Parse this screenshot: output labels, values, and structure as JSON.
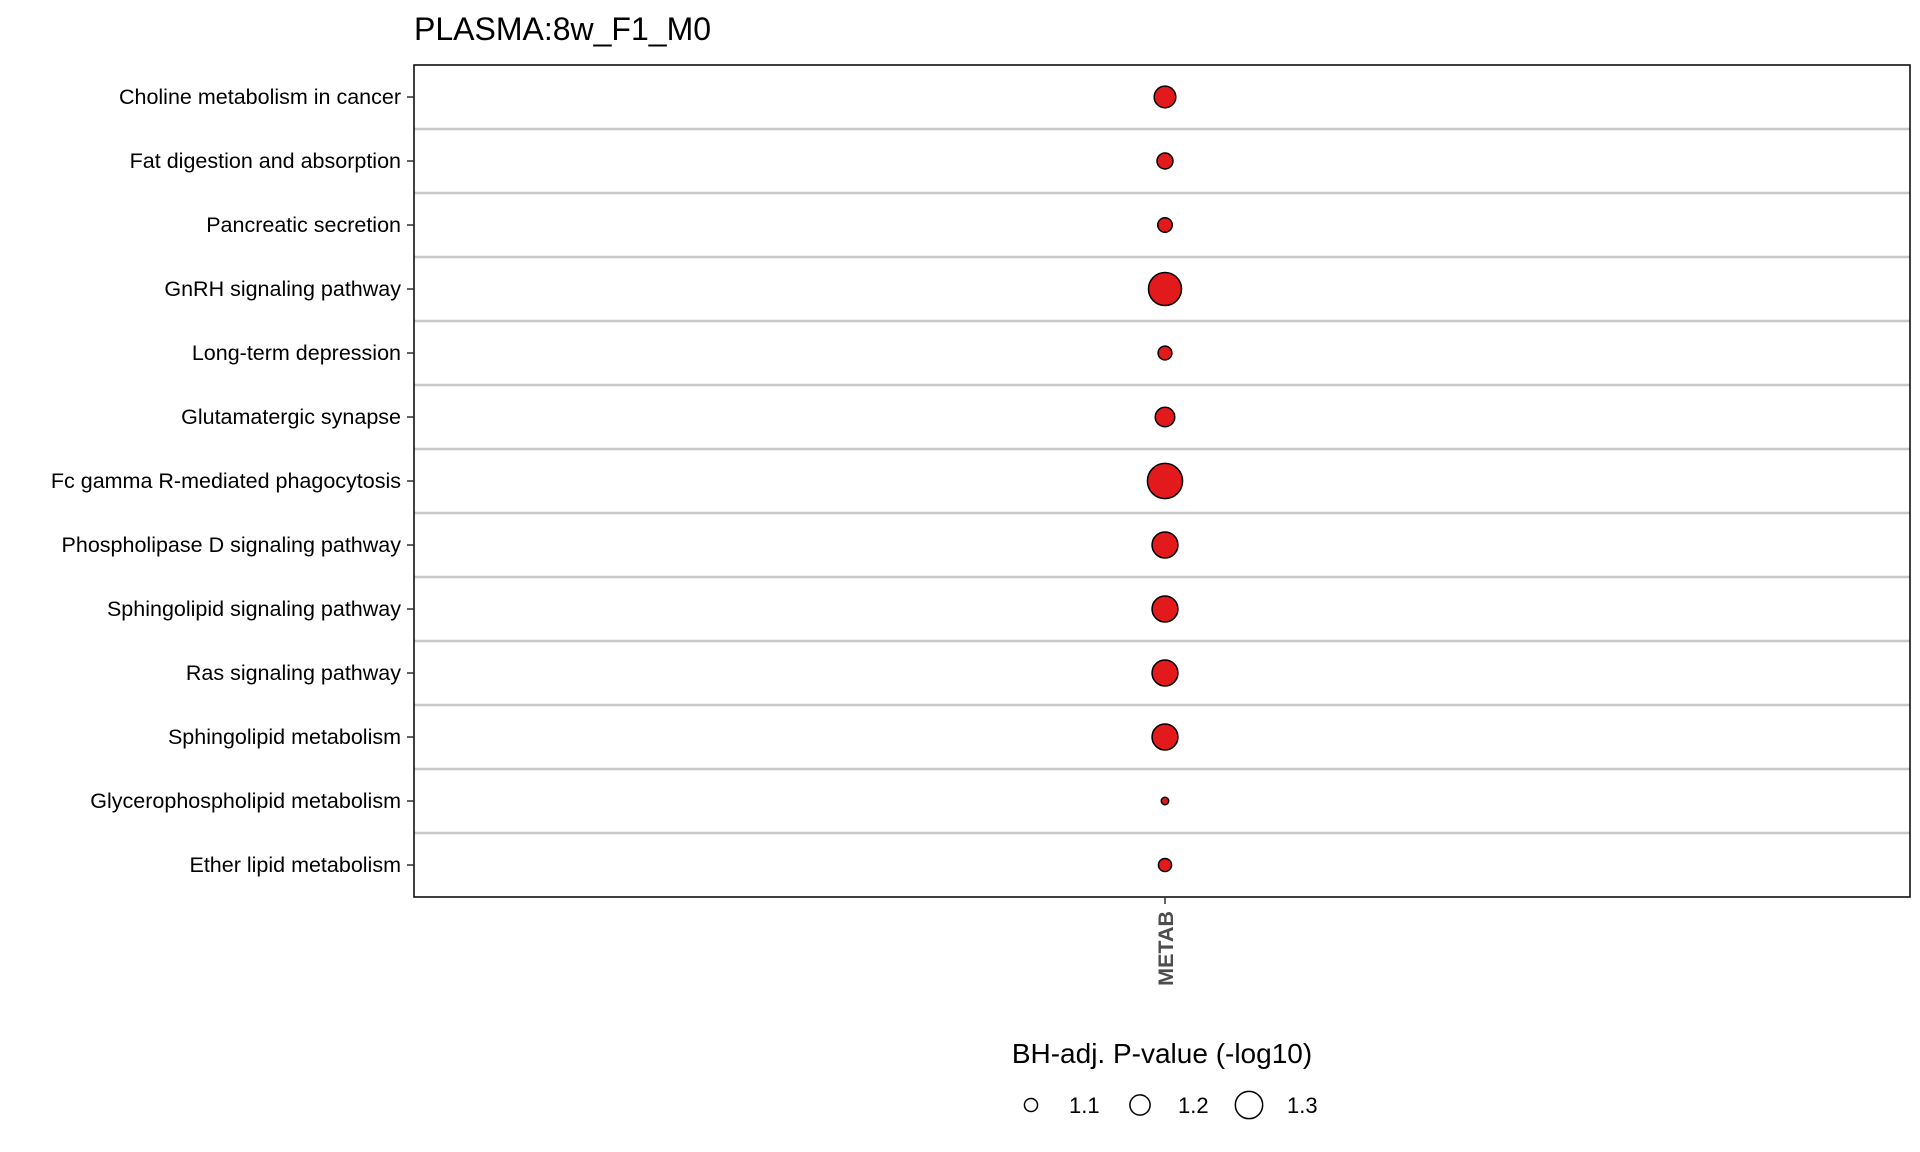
{
  "chart_data": {
    "type": "scatter",
    "title": "PLASMA:8w_F1_M0",
    "xlabel": "",
    "ylabel": "",
    "x_categories": [
      "METAB"
    ],
    "y_categories": [
      "Choline metabolism in cancer",
      "Fat digestion and absorption",
      "Pancreatic secretion",
      "GnRH signaling pathway",
      "Long-term depression",
      "Glutamatergic synapse",
      "Fc gamma R-mediated phagocytosis",
      "Phospholipase D signaling pathway",
      "Sphingolipid signaling pathway",
      "Ras signaling pathway",
      "Sphingolipid metabolism",
      "Glycerophospholipid metabolism",
      "Ether lipid metabolism"
    ],
    "points": [
      {
        "y": "Choline metabolism in cancer",
        "x": "METAB",
        "size_value": 1.22
      },
      {
        "y": "Fat digestion and absorption",
        "x": "METAB",
        "size_value": 1.14
      },
      {
        "y": "Pancreatic secretion",
        "x": "METAB",
        "size_value": 1.12
      },
      {
        "y": "GnRH signaling pathway",
        "x": "METAB",
        "size_value": 1.38
      },
      {
        "y": "Long-term depression",
        "x": "METAB",
        "size_value": 1.11
      },
      {
        "y": "Glutamatergic synapse",
        "x": "METAB",
        "size_value": 1.19
      },
      {
        "y": "Fc gamma R-mediated phagocytosis",
        "x": "METAB",
        "size_value": 1.41
      },
      {
        "y": "Phospholipase D signaling pathway",
        "x": "METAB",
        "size_value": 1.28
      },
      {
        "y": "Sphingolipid signaling pathway",
        "x": "METAB",
        "size_value": 1.28
      },
      {
        "y": "Ras signaling pathway",
        "x": "METAB",
        "size_value": 1.28
      },
      {
        "y": "Sphingolipid metabolism",
        "x": "METAB",
        "size_value": 1.28
      },
      {
        "y": "Glycerophospholipid metabolism",
        "x": "METAB",
        "size_value": 1.02
      },
      {
        "y": "Ether lipid metabolism",
        "x": "METAB",
        "size_value": 1.1
      }
    ],
    "point_color": "#e31a1c",
    "point_stroke": "#000000",
    "gridlines": "horizontal",
    "legend": {
      "title": "BH-adj. P-value (-log10)",
      "position": "bottom",
      "entries": [
        {
          "label": "1.1",
          "value": 1.1
        },
        {
          "label": "1.2",
          "value": 1.2
        },
        {
          "label": "1.3",
          "value": 1.3
        }
      ]
    }
  }
}
